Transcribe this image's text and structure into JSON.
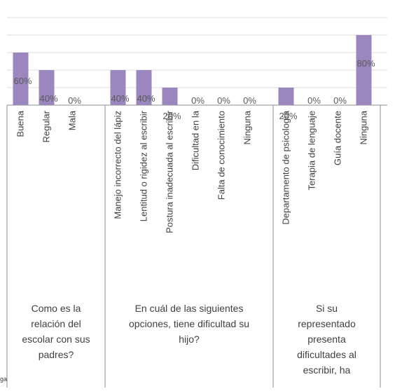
{
  "chart_data": {
    "type": "bar",
    "ylim": [
      0,
      100
    ],
    "grid": true,
    "legend": "none",
    "groups": [
      {
        "label_lines": [
          "Como es la",
          "relación del",
          "escolar con sus",
          "padres?"
        ],
        "categories": [
          "Buena",
          "Regular",
          "Mala"
        ],
        "values": [
          60,
          40,
          0
        ]
      },
      {
        "label_lines": [
          "En cuál de las siguientes",
          "opciones, tiene dificultad su",
          "hijo?"
        ],
        "categories": [
          "Manejo incorrecto del lápiz",
          "Lentitud o rigidez al escribir",
          "Postura inadecuada al escribir",
          "Dificultad en la",
          "Falta de conocimiento",
          "Ninguna"
        ],
        "values": [
          40,
          40,
          20,
          0,
          0,
          0
        ]
      },
      {
        "label_lines": [
          "Si su",
          "representado",
          "presenta",
          "dificultades al",
          "escribir, ha"
        ],
        "categories": [
          "Departamento de psicología",
          "Terapia de lenguaje",
          "Guía docente",
          "Ninguna"
        ],
        "values": [
          20,
          0,
          0,
          80
        ]
      }
    ],
    "data_labels": [
      "60%",
      "40%",
      "0%",
      "40%",
      "40%",
      "20%",
      "0%",
      "0%",
      "0%",
      "20%",
      "0%",
      "0%",
      "80%"
    ],
    "bar_color": "#9b86be"
  },
  "cut_text": "ga"
}
